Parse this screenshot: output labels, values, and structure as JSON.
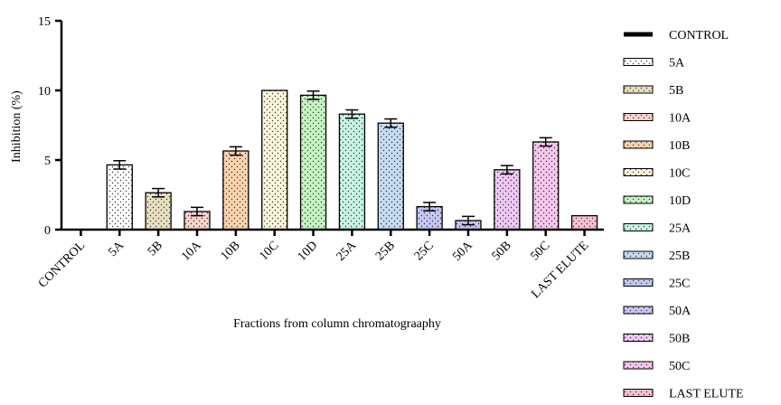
{
  "chart_data": {
    "type": "bar",
    "title": "",
    "xlabel": "Fractions from column chromatograaphy",
    "ylabel": "Inhibition (%)",
    "ylim": [
      0,
      15
    ],
    "yticks": [
      "0",
      "5",
      "10",
      "15"
    ],
    "grid": false,
    "legend_position": "right",
    "categories": [
      "CONTROL",
      "5A",
      "5B",
      "10A",
      "10B",
      "10C",
      "10D",
      "25A",
      "25B",
      "25C",
      "50A",
      "50B",
      "50C",
      "LAST ELUTE"
    ],
    "values": [
      0,
      4.65,
      2.65,
      1.3,
      5.65,
      10.0,
      9.65,
      8.3,
      7.65,
      1.65,
      0.65,
      4.3,
      6.3,
      1.0
    ],
    "errors": [
      0,
      0.3,
      0.3,
      0.3,
      0.3,
      0,
      0.3,
      0.3,
      0.3,
      0.3,
      0.3,
      0.3,
      0.3,
      0
    ],
    "legend": [
      "CONTROL",
      "5A",
      "5B",
      "10A",
      "10B",
      "10C",
      "10D",
      "25A",
      "25B",
      "25C",
      "50A",
      "50B",
      "50C",
      "LAST ELUTE"
    ],
    "colors": [
      "#000000",
      "#ffffff",
      "#e8dfc0",
      "#f9d2cb",
      "#fbd3ad",
      "#fbf6d8",
      "#c5f3c2",
      "#c6f3e6",
      "#c5dcf3",
      "#c4c7f5",
      "#c9c4f7",
      "#efc7f5",
      "#f8c6ee",
      "#f7c1d0"
    ]
  }
}
